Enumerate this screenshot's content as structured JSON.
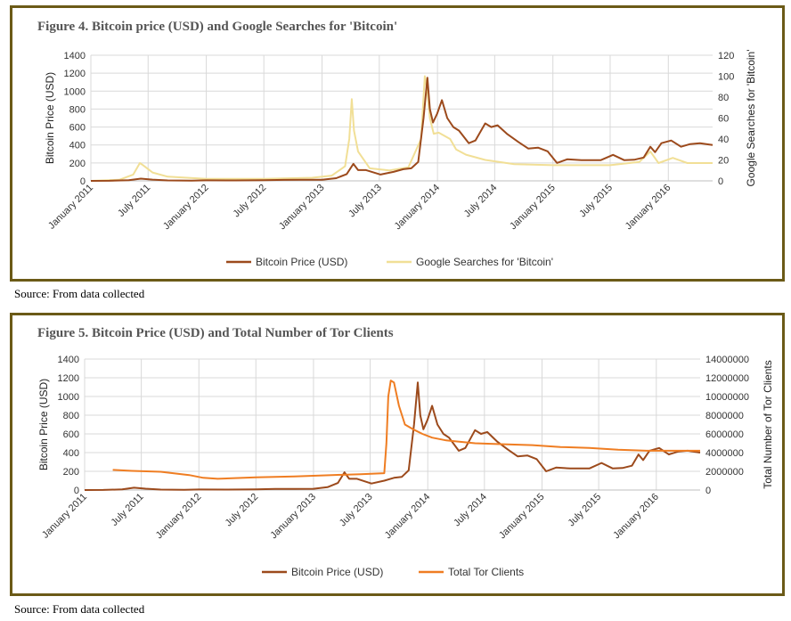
{
  "figures": [
    {
      "title": "Figure 4. Bitcoin price (USD) and Google Searches for 'Bitcoin'",
      "source": "Source: From data collected"
    },
    {
      "title": "Figure 5. Bitcoin Price (USD) and Total Number of Tor Clients",
      "source": "Source: From data collected"
    }
  ],
  "chart_data": [
    {
      "type": "line",
      "title": "Figure 4. Bitcoin price (USD) and Google Searches for 'Bitcoin'",
      "ylabel": "Bitcoin Price (USD)",
      "y2label": "Google Searches for 'Bitcoin'",
      "ylim": [
        0,
        1400
      ],
      "y2lim": [
        0,
        120
      ],
      "yticks": [
        "0",
        "200",
        "400",
        "600",
        "800",
        "1000",
        "1200",
        "1400"
      ],
      "y2ticks": [
        "0",
        "20",
        "40",
        "60",
        "80",
        "100",
        "120"
      ],
      "xlim": [
        "2011-01-01",
        "2016-05-20"
      ],
      "xticks": [
        "2011-01-01",
        "2011-07-01",
        "2012-01-01",
        "2012-07-01",
        "2013-01-01",
        "2013-07-01",
        "2014-01-01",
        "2014-07-01",
        "2015-01-01",
        "2015-07-01",
        "2016-01-01"
      ],
      "xtick_labels": [
        "January 2011",
        "July 2011",
        "January 2012",
        "July 2012",
        "January 2013",
        "July 2013",
        "January 2014",
        "July 2014",
        "January 2015",
        "July 2015",
        "January 2016"
      ],
      "grid": true,
      "legend": "bottom",
      "series": [
        {
          "name": "Bitcoin Price (USD)",
          "axis": "left",
          "color": "#9c4a1c",
          "x": [
            "2011-01-01",
            "2011-03-01",
            "2011-05-01",
            "2011-06-08",
            "2011-07-15",
            "2011-09-01",
            "2011-11-15",
            "2012-01-01",
            "2012-04-01",
            "2012-07-01",
            "2012-09-01",
            "2012-11-01",
            "2013-01-01",
            "2013-02-15",
            "2013-03-20",
            "2013-04-10",
            "2013-04-25",
            "2013-05-20",
            "2013-07-05",
            "2013-08-15",
            "2013-09-15",
            "2013-10-10",
            "2013-11-01",
            "2013-11-18",
            "2013-11-30",
            "2013-12-08",
            "2013-12-18",
            "2013-12-31",
            "2014-01-15",
            "2014-02-01",
            "2014-02-20",
            "2014-03-10",
            "2014-04-10",
            "2014-05-01",
            "2014-06-01",
            "2014-06-20",
            "2014-07-10",
            "2014-08-10",
            "2014-09-15",
            "2014-10-15",
            "2014-11-15",
            "2014-12-15",
            "2015-01-14",
            "2015-02-15",
            "2015-04-01",
            "2015-06-01",
            "2015-07-10",
            "2015-08-15",
            "2015-09-15",
            "2015-10-15",
            "2015-11-05",
            "2015-11-20",
            "2015-12-10",
            "2016-01-10",
            "2016-02-10",
            "2016-03-10",
            "2016-04-10",
            "2016-05-20"
          ],
          "values": [
            0.3,
            0.9,
            7,
            25,
            14,
            5,
            3,
            6,
            5,
            7,
            11,
            12,
            13,
            30,
            75,
            190,
            120,
            120,
            70,
            100,
            130,
            140,
            210,
            700,
            1150,
            800,
            650,
            750,
            900,
            700,
            600,
            560,
            420,
            450,
            640,
            600,
            620,
            520,
            430,
            360,
            370,
            330,
            200,
            240,
            230,
            230,
            290,
            230,
            235,
            260,
            380,
            320,
            420,
            450,
            380,
            410,
            420,
            400
          ]
        },
        {
          "name": "Google Searches for 'Bitcoin'",
          "axis": "right",
          "color": "#f1df96",
          "x": [
            "2011-01-01",
            "2011-04-01",
            "2011-05-15",
            "2011-06-05",
            "2011-06-15",
            "2011-07-15",
            "2011-09-01",
            "2011-11-01",
            "2012-01-01",
            "2012-07-01",
            "2012-12-01",
            "2013-02-01",
            "2013-03-15",
            "2013-03-28",
            "2013-04-05",
            "2013-04-12",
            "2013-04-25",
            "2013-06-01",
            "2013-08-01",
            "2013-10-01",
            "2013-11-10",
            "2013-11-22",
            "2013-11-30",
            "2013-12-08",
            "2013-12-20",
            "2014-01-05",
            "2014-02-10",
            "2014-03-01",
            "2014-04-01",
            "2014-06-01",
            "2014-09-01",
            "2015-01-01",
            "2015-07-01",
            "2015-10-01",
            "2015-11-05",
            "2015-12-01",
            "2016-01-15",
            "2016-03-01",
            "2016-05-20"
          ],
          "values": [
            0,
            1,
            6,
            17,
            15,
            8,
            4,
            3,
            2,
            2,
            3,
            5,
            14,
            40,
            78,
            48,
            28,
            12,
            10,
            13,
            40,
            100,
            85,
            60,
            45,
            46,
            40,
            30,
            25,
            20,
            16,
            15,
            15,
            18,
            28,
            17,
            22,
            17,
            17
          ]
        }
      ]
    },
    {
      "type": "line",
      "title": "Figure 5. Bitcoin Price (USD) and Total Number of Tor Clients",
      "ylabel": "Bitcoin Price (USD)",
      "y2label": "Total Number of Tor Clients",
      "ylim": [
        0,
        1400
      ],
      "y2lim": [
        0,
        14000000
      ],
      "yticks": [
        "0",
        "200",
        "400",
        "600",
        "800",
        "1000",
        "1200",
        "1400"
      ],
      "y2ticks": [
        "0",
        "2000000",
        "4000000",
        "6000000",
        "8000000",
        "10000000",
        "12000000",
        "14000000"
      ],
      "xlim": [
        "2011-01-01",
        "2016-05-20"
      ],
      "xticks": [
        "2011-01-01",
        "2011-07-01",
        "2012-01-01",
        "2012-07-01",
        "2013-01-01",
        "2013-07-01",
        "2014-01-01",
        "2014-07-01",
        "2015-01-01",
        "2015-07-01",
        "2016-01-01"
      ],
      "xtick_labels": [
        "January 2011",
        "July 2011",
        "January 2012",
        "July 2012",
        "January 2013",
        "July 2013",
        "January 2014",
        "July 2014",
        "January 2015",
        "July 2015",
        "January 2016"
      ],
      "grid": true,
      "legend": "bottom",
      "series": [
        {
          "name": "Bitcoin Price (USD)",
          "axis": "left",
          "color": "#9c4a1c",
          "x": [
            "2011-01-01",
            "2011-03-01",
            "2011-05-01",
            "2011-06-08",
            "2011-07-15",
            "2011-09-01",
            "2011-11-15",
            "2012-01-01",
            "2012-04-01",
            "2012-07-01",
            "2012-09-01",
            "2012-11-01",
            "2013-01-01",
            "2013-02-15",
            "2013-03-20",
            "2013-04-10",
            "2013-04-25",
            "2013-05-20",
            "2013-07-05",
            "2013-08-15",
            "2013-09-15",
            "2013-10-10",
            "2013-11-01",
            "2013-11-18",
            "2013-11-30",
            "2013-12-08",
            "2013-12-18",
            "2013-12-31",
            "2014-01-15",
            "2014-02-01",
            "2014-02-20",
            "2014-03-10",
            "2014-04-10",
            "2014-05-01",
            "2014-06-01",
            "2014-06-20",
            "2014-07-10",
            "2014-08-10",
            "2014-09-15",
            "2014-10-15",
            "2014-11-15",
            "2014-12-15",
            "2015-01-14",
            "2015-02-15",
            "2015-04-01",
            "2015-06-01",
            "2015-07-10",
            "2015-08-15",
            "2015-09-15",
            "2015-10-15",
            "2015-11-05",
            "2015-11-20",
            "2015-12-10",
            "2016-01-10",
            "2016-02-10",
            "2016-03-10",
            "2016-04-10",
            "2016-05-20"
          ],
          "values": [
            0.3,
            0.9,
            7,
            25,
            14,
            5,
            3,
            6,
            5,
            7,
            11,
            12,
            13,
            30,
            75,
            190,
            120,
            120,
            70,
            100,
            130,
            140,
            210,
            700,
            1150,
            800,
            650,
            750,
            900,
            700,
            600,
            560,
            420,
            450,
            640,
            600,
            620,
            520,
            430,
            360,
            370,
            330,
            200,
            240,
            230,
            230,
            290,
            230,
            235,
            260,
            380,
            320,
            420,
            450,
            380,
            410,
            420,
            400
          ]
        },
        {
          "name": "Total Tor Clients",
          "axis": "right",
          "color": "#ef7d22",
          "x": [
            "2011-04-01",
            "2011-06-01",
            "2011-09-01",
            "2011-12-01",
            "2012-01-15",
            "2012-03-01",
            "2012-07-01",
            "2012-11-01",
            "2013-03-01",
            "2013-06-01",
            "2013-08-15",
            "2013-08-22",
            "2013-08-28",
            "2013-09-05",
            "2013-09-15",
            "2013-10-01",
            "2013-10-20",
            "2013-11-15",
            "2013-12-15",
            "2014-01-15",
            "2014-03-01",
            "2014-06-01",
            "2014-09-01",
            "2014-12-01",
            "2015-03-01",
            "2015-06-01",
            "2015-09-01",
            "2015-12-01",
            "2016-03-01",
            "2016-05-20"
          ],
          "values": [
            2150000,
            2050000,
            1950000,
            1600000,
            1300000,
            1200000,
            1350000,
            1450000,
            1600000,
            1700000,
            1800000,
            5000000,
            10000000,
            11700000,
            11500000,
            9000000,
            7000000,
            6500000,
            6000000,
            5600000,
            5300000,
            5000000,
            4900000,
            4800000,
            4600000,
            4500000,
            4300000,
            4200000,
            4200000,
            4200000
          ]
        }
      ]
    }
  ]
}
